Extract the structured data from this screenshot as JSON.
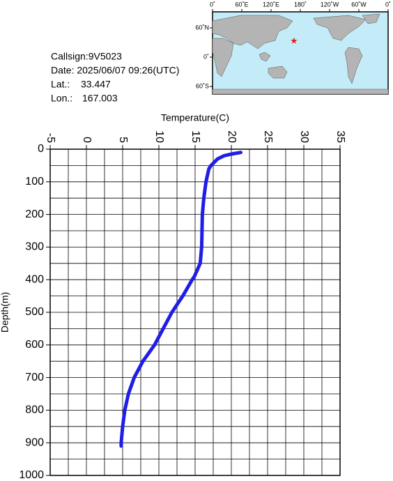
{
  "info": {
    "callsign": "Callsign:9V5023",
    "date": "Date:  2025/06/07 09:26(UTC)",
    "lat_label": "Lat.:",
    "lat": 33.447,
    "lon_label": "Lon.:",
    "lon": 167.003
  },
  "map": {
    "lonticks": [
      {
        "value": 0,
        "label": "0˚"
      },
      {
        "value": 60,
        "label": "60˚E"
      },
      {
        "value": 120,
        "label": "120˚E"
      },
      {
        "value": 180,
        "label": "180˚"
      },
      {
        "value": 240,
        "label": "120˚W"
      },
      {
        "value": 300,
        "label": "60˚W"
      },
      {
        "value": 360,
        "label": "0˚"
      }
    ],
    "latticks": [
      {
        "value": 60,
        "label": "60˚N"
      },
      {
        "value": 0,
        "label": "0˚"
      },
      {
        "value": -60,
        "label": "60˚S"
      }
    ]
  },
  "chart_data": {
    "type": "line",
    "xlabel": "Temperature(C)",
    "ylabel": "Depth(m)",
    "xlim": [
      -5,
      35
    ],
    "xticks": [
      -5,
      0,
      5,
      10,
      15,
      20,
      25,
      30,
      35
    ],
    "ylim": [
      0,
      1000
    ],
    "yticks": [
      0,
      100,
      200,
      300,
      400,
      500,
      600,
      700,
      800,
      900,
      1000
    ],
    "y_reversed": true,
    "grid": true,
    "series": [
      {
        "color": "#1e1ee6",
        "x": [
          21.3,
          20.0,
          19.0,
          18.1,
          17.2,
          16.9,
          16.5,
          16.2,
          16.0,
          15.9,
          15.7,
          14.9,
          14.6,
          13.3,
          11.8,
          10.6,
          9.4,
          7.8,
          6.6,
          5.8,
          5.3,
          5.0,
          4.8,
          4.8
        ],
        "values": [
          10,
          15,
          20,
          30,
          50,
          60,
          100,
          150,
          200,
          300,
          350,
          390,
          400,
          450,
          500,
          550,
          600,
          650,
          700,
          750,
          800,
          850,
          900,
          910
        ]
      }
    ]
  }
}
